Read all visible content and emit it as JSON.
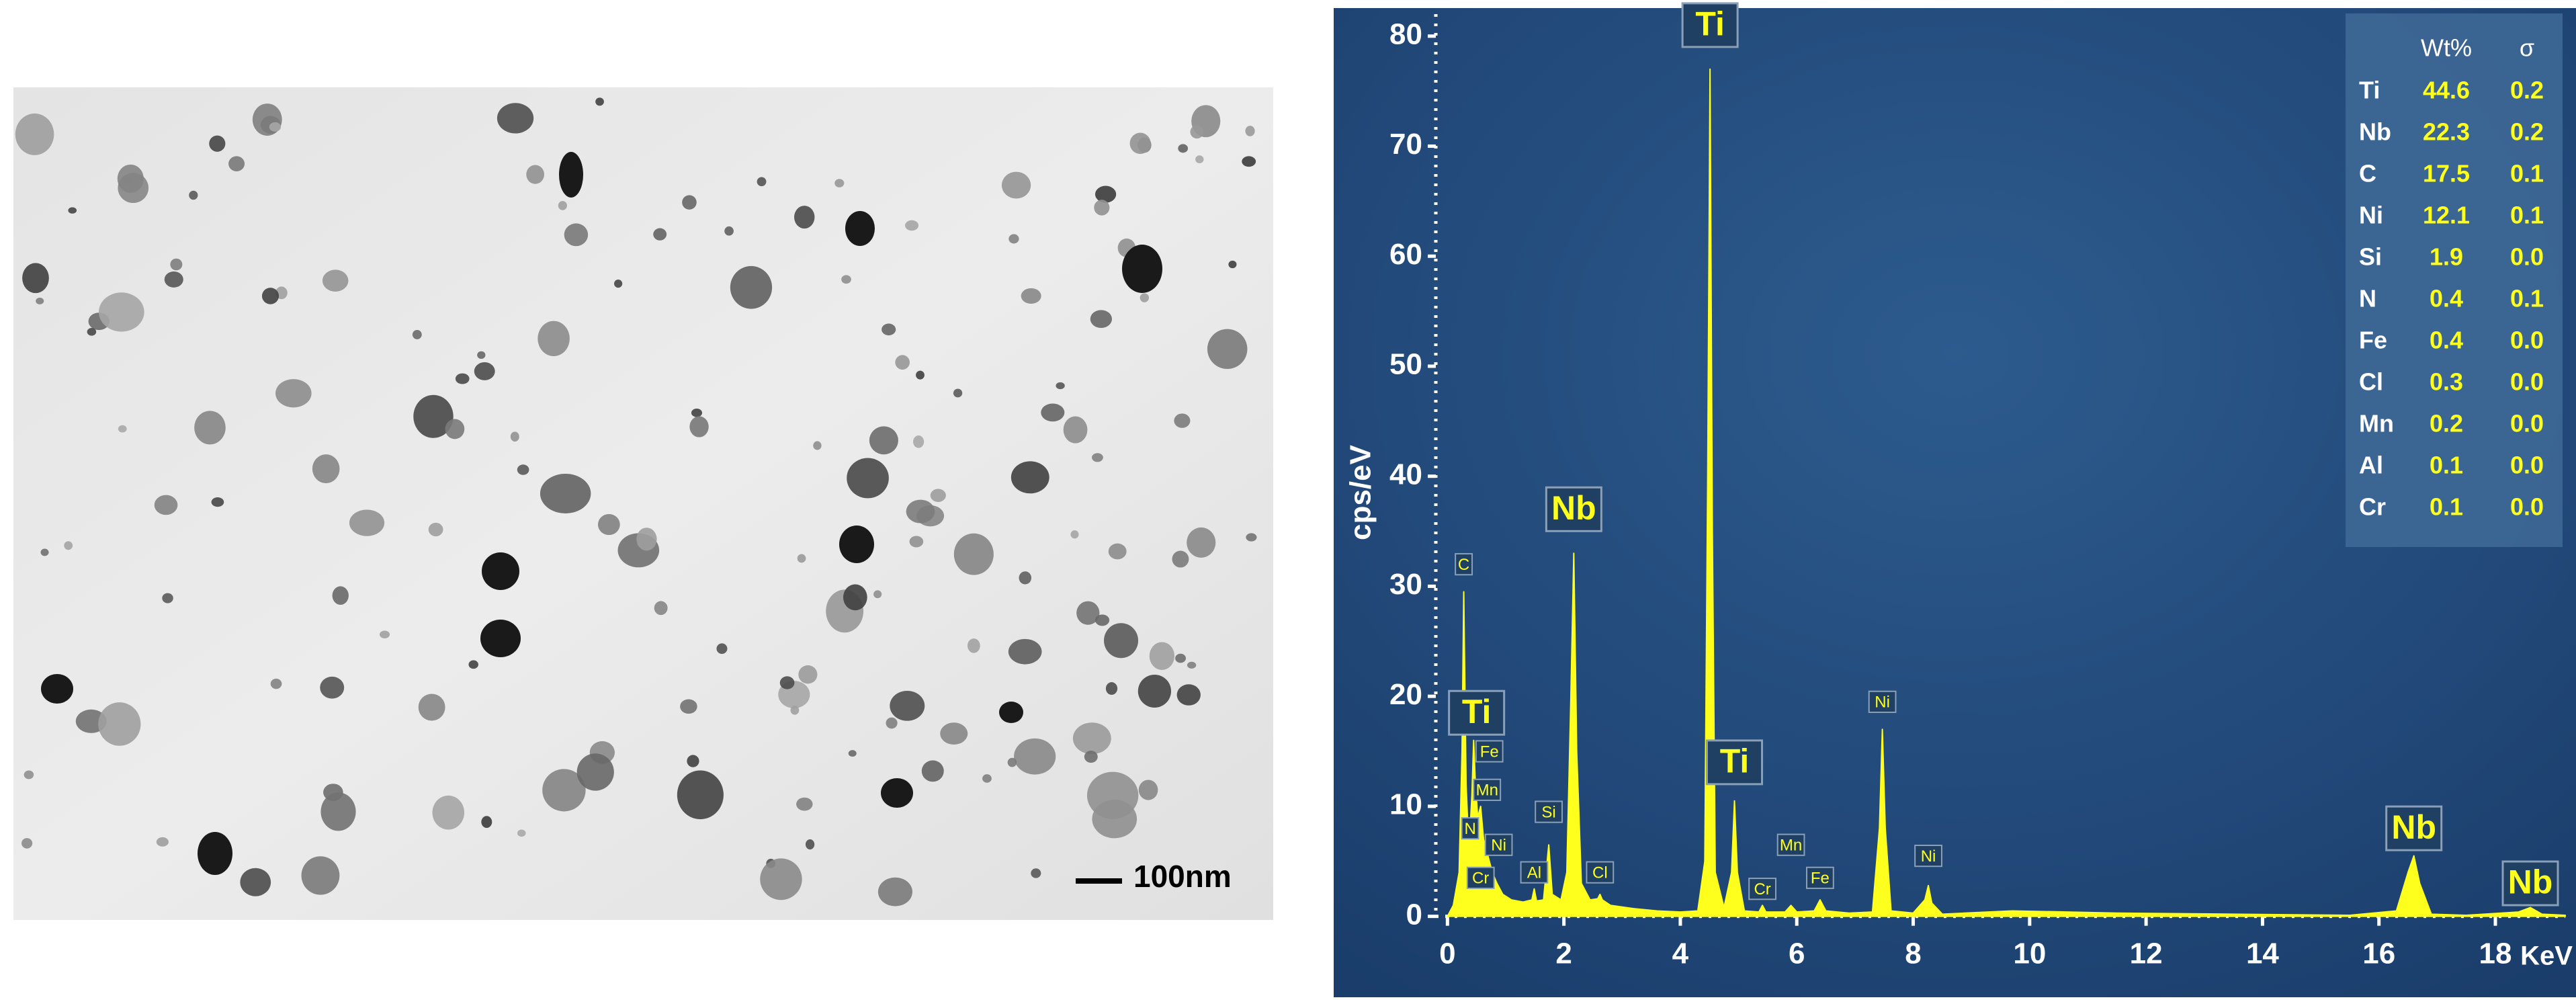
{
  "image": {
    "scale_bar": "100nm"
  },
  "chart_data": {
    "type": "area",
    "y_label": "cps/eV",
    "x_label": "KeV",
    "xlim": [
      -0.2,
      19.2
    ],
    "xticks": [
      0,
      2,
      4,
      6,
      8,
      10,
      12,
      14,
      16,
      18
    ],
    "ylim": [
      -1,
      82
    ],
    "yticks": [
      0,
      10,
      20,
      30,
      40,
      50,
      60,
      70,
      80
    ],
    "color": "#ffff1e",
    "x": [
      0,
      0.1,
      0.2,
      0.25,
      0.28,
      0.32,
      0.36,
      0.39,
      0.42,
      0.45,
      0.48,
      0.52,
      0.57,
      0.62,
      0.67,
      0.72,
      0.77,
      0.85,
      0.95,
      1.1,
      1.3,
      1.45,
      1.49,
      1.53,
      1.65,
      1.74,
      1.8,
      1.95,
      2.05,
      2.12,
      2.17,
      2.22,
      2.3,
      2.45,
      2.58,
      2.62,
      2.66,
      2.8,
      3.2,
      3.6,
      4.0,
      4.3,
      4.42,
      4.47,
      4.51,
      4.55,
      4.6,
      4.75,
      4.88,
      4.93,
      4.98,
      5.1,
      5.35,
      5.41,
      5.47,
      5.8,
      5.9,
      6.0,
      6.3,
      6.4,
      6.5,
      6.9,
      7.3,
      7.42,
      7.47,
      7.52,
      7.62,
      8.0,
      8.2,
      8.26,
      8.32,
      8.5,
      9.7,
      11.5,
      13.5,
      15.5,
      16.3,
      16.5,
      16.6,
      16.7,
      16.9,
      17.5,
      18.4,
      18.6,
      18.8,
      19.2
    ],
    "values": [
      0,
      1,
      4,
      15,
      29.5,
      12,
      7,
      8,
      11,
      16,
      12,
      9,
      10,
      7,
      6,
      5,
      4,
      3,
      2,
      1.5,
      1.3,
      1.5,
      2.5,
      1.4,
      1.5,
      6.5,
      2,
      1.5,
      4,
      20,
      33,
      15,
      3,
      1.5,
      1.6,
      2,
      1.5,
      1,
      0.7,
      0.5,
      0.4,
      0.5,
      5,
      40,
      77,
      35,
      4,
      0.8,
      4,
      10.5,
      4,
      0.5,
      0.4,
      1,
      0.4,
      0.4,
      1,
      0.4,
      0.5,
      1.5,
      0.5,
      0.3,
      0.4,
      8,
      17,
      8,
      0.5,
      0.3,
      1.5,
      2.8,
      1.2,
      0.2,
      0.5,
      0.3,
      0.2,
      0.1,
      0.5,
      4,
      5.5,
      3,
      0.2,
      0.1,
      0.4,
      0.8,
      0.2,
      0.1
    ],
    "annotations": [
      {
        "text": "Ti",
        "x": 4.51,
        "y": 81,
        "size": "large"
      },
      {
        "text": "Nb",
        "x": 2.17,
        "y": 37,
        "size": "large"
      },
      {
        "text": "Ti",
        "x": 4.93,
        "y": 14,
        "size": "large"
      },
      {
        "text": "Nb",
        "x": 16.6,
        "y": 8,
        "size": "large"
      },
      {
        "text": "Nb",
        "x": 18.6,
        "y": 3,
        "size": "large"
      },
      {
        "text": "Ti",
        "x": 0.5,
        "y": 18.5,
        "size": "large"
      },
      {
        "text": "C",
        "x": 0.28,
        "y": 32,
        "size": "small"
      },
      {
        "text": "Fe",
        "x": 0.72,
        "y": 15,
        "size": "small"
      },
      {
        "text": "Mn",
        "x": 0.68,
        "y": 11.5,
        "size": "small"
      },
      {
        "text": "N",
        "x": 0.39,
        "y": 8,
        "size": "small"
      },
      {
        "text": "Ni",
        "x": 0.88,
        "y": 6.5,
        "size": "small"
      },
      {
        "text": "Cr",
        "x": 0.57,
        "y": 3.5,
        "size": "small"
      },
      {
        "text": "Al",
        "x": 1.49,
        "y": 4,
        "size": "small"
      },
      {
        "text": "Si",
        "x": 1.74,
        "y": 9.5,
        "size": "small"
      },
      {
        "text": "Cl",
        "x": 2.62,
        "y": 4,
        "size": "small"
      },
      {
        "text": "Cr",
        "x": 5.41,
        "y": 2.5,
        "size": "small"
      },
      {
        "text": "Mn",
        "x": 5.9,
        "y": 6.5,
        "size": "small"
      },
      {
        "text": "Fe",
        "x": 6.4,
        "y": 3.5,
        "size": "small"
      },
      {
        "text": "Ni",
        "x": 7.47,
        "y": 19.5,
        "size": "small"
      },
      {
        "text": "Ni",
        "x": 8.26,
        "y": 5.5,
        "size": "small"
      }
    ],
    "table": {
      "columns": [
        "Wt%",
        "σ"
      ],
      "rows": [
        [
          "Ti",
          "44.6",
          "0.2"
        ],
        [
          "Nb",
          "22.3",
          "0.2"
        ],
        [
          "C",
          "17.5",
          "0.1"
        ],
        [
          "Ni",
          "12.1",
          "0.1"
        ],
        [
          "Si",
          "1.9",
          "0.0"
        ],
        [
          "N",
          "0.4",
          "0.1"
        ],
        [
          "Fe",
          "0.4",
          "0.0"
        ],
        [
          "Cl",
          "0.3",
          "0.0"
        ],
        [
          "Mn",
          "0.2",
          "0.0"
        ],
        [
          "Al",
          "0.1",
          "0.0"
        ],
        [
          "Cr",
          "0.1",
          "0.0"
        ]
      ]
    }
  }
}
